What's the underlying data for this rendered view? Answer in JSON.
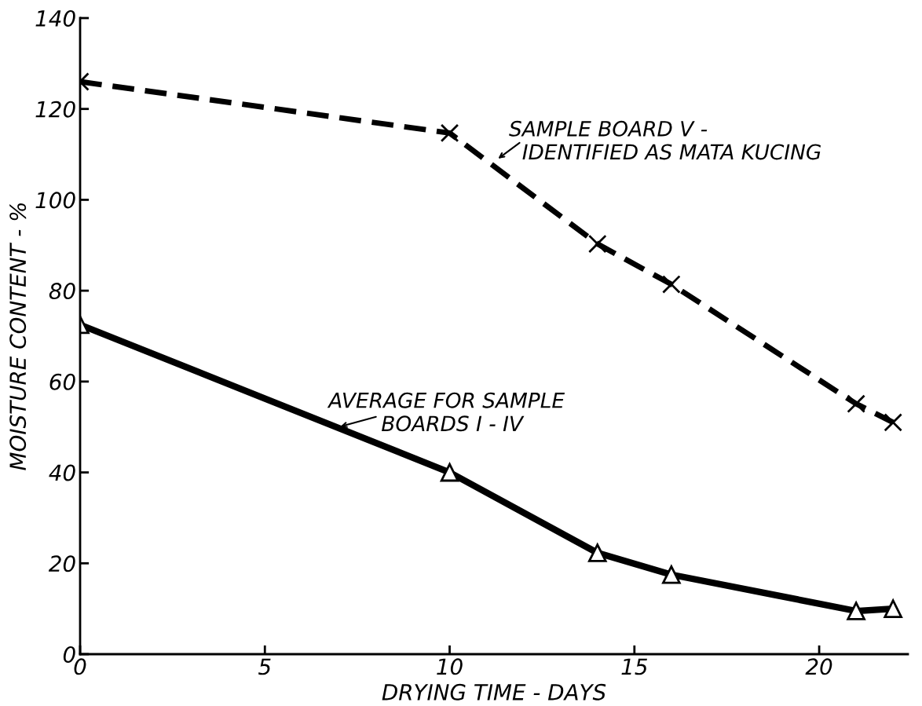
{
  "chart_data": {
    "type": "line",
    "xlabel": "DRYING TIME - DAYS",
    "ylabel": "MOISTURE CONTENT - %",
    "series": [
      {
        "x": [
          0,
          10,
          14,
          16,
          21,
          22
        ],
        "values": [
          126,
          114.7,
          90.3,
          81.4,
          55.1,
          51
        ],
        "color": "#000000",
        "line_style": "dashed",
        "marker": "cross"
      },
      {
        "x": [
          0,
          10,
          14,
          16,
          21,
          22
        ],
        "values": [
          72.5,
          40,
          22.3,
          17.5,
          9.5,
          10
        ],
        "color": "#000000",
        "line_style": "solid",
        "marker": "triangle"
      }
    ],
    "annotations": [
      "SAMPLE BOARD V -\n  IDENTIFIED AS MATA KUCING",
      "AVERAGE FOR SAMPLE\n        BOARDS I - IV"
    ],
    "xlim": [
      0,
      22.4
    ],
    "ylim": [
      0,
      140
    ],
    "xticks": [
      0,
      5,
      10,
      15,
      20
    ],
    "yticks": [
      0,
      20,
      40,
      60,
      80,
      100,
      120,
      140
    ],
    "grid": false,
    "legend": false
  }
}
